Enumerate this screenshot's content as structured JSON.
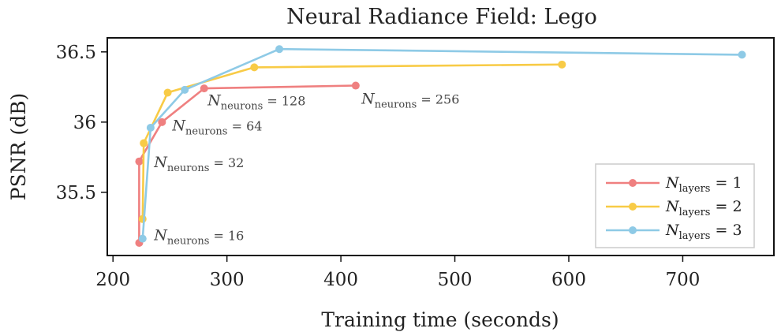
{
  "chart_data": {
    "type": "line",
    "title": "Neural Radiance Field: Lego",
    "xlabel": "Training time (seconds)",
    "ylabel": "PSNR (dB)",
    "xlim": [
      195,
      780
    ],
    "ylim": [
      35.05,
      36.6
    ],
    "xticks": [
      "200",
      "300",
      "400",
      "500",
      "600",
      "700"
    ],
    "xtick_values": [
      200,
      300,
      400,
      500,
      600,
      700
    ],
    "yticks": [
      "35.5",
      "36",
      "36.5"
    ],
    "ytick_values": [
      35.5,
      36.0,
      36.5
    ],
    "grid": false,
    "legend_position": "bottom-right",
    "series": [
      {
        "name": "N_layers = 1",
        "label_main": "N",
        "label_sub": "layers",
        "label_tail": " = 1",
        "color": "#ef8080",
        "x": [
          223,
          223,
          243,
          280,
          413
        ],
        "y": [
          35.14,
          35.72,
          36.0,
          36.24,
          36.26
        ]
      },
      {
        "name": "N_layers = 2",
        "label_main": "N",
        "label_sub": "layers",
        "label_tail": " = 2",
        "color": "#f8cb46",
        "x": [
          226,
          227,
          248,
          324,
          594
        ],
        "y": [
          35.31,
          35.85,
          36.21,
          36.39,
          36.41
        ]
      },
      {
        "name": "N_layers = 3",
        "label_main": "N",
        "label_sub": "layers",
        "label_tail": " = 3",
        "color": "#8ecae6",
        "x": [
          226,
          233,
          263,
          346,
          752
        ],
        "y": [
          35.17,
          35.96,
          36.23,
          36.52,
          36.48
        ]
      }
    ],
    "annotations": [
      {
        "main": "N",
        "sub": "neurons",
        "tail": " = 16",
        "x": 236,
        "y": 35.16
      },
      {
        "main": "N",
        "sub": "neurons",
        "tail": " = 32",
        "x": 236,
        "y": 35.68
      },
      {
        "main": "N",
        "sub": "neurons",
        "tail": " = 64",
        "x": 252,
        "y": 35.94
      },
      {
        "main": "N",
        "sub": "neurons",
        "tail": " = 128",
        "x": 283,
        "y": 36.12
      },
      {
        "main": "N",
        "sub": "neurons",
        "tail": " = 256",
        "x": 418,
        "y": 36.13
      }
    ]
  }
}
